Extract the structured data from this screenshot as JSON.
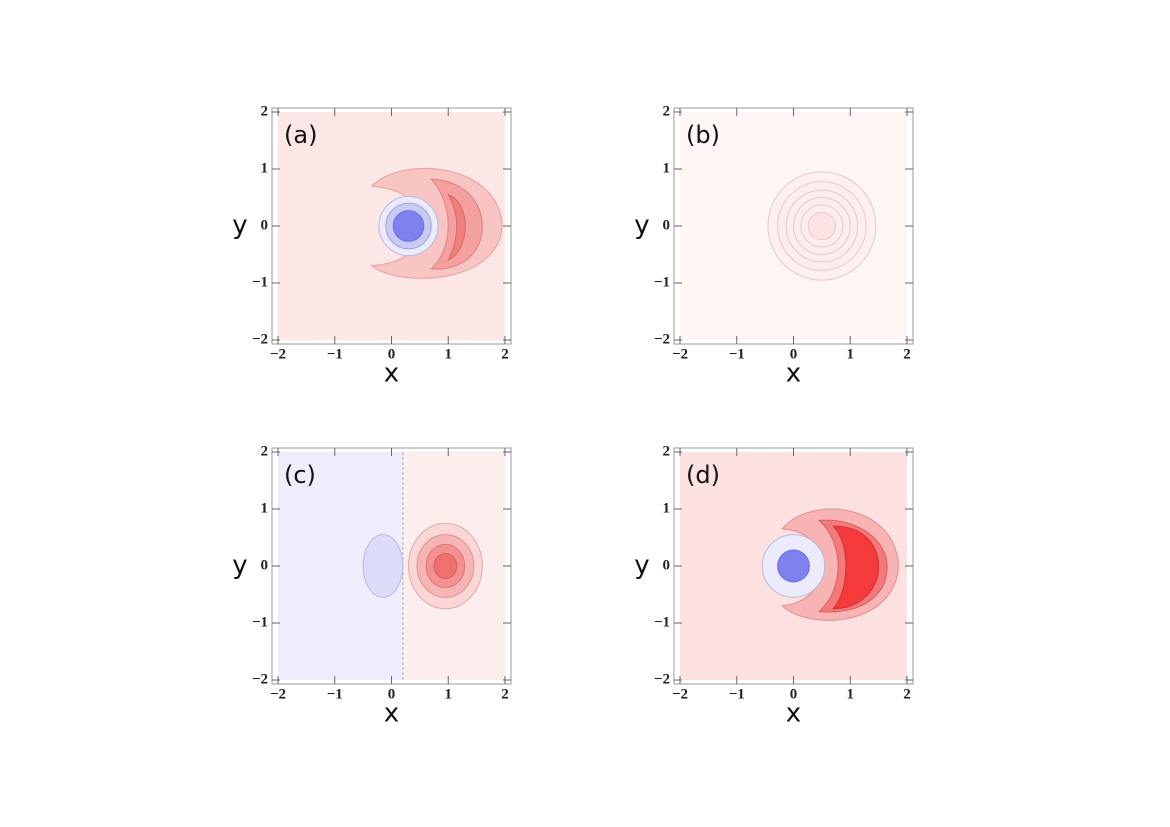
{
  "chart_data": [
    {
      "type": "contour",
      "panel_label": "(a)",
      "xlabel": "x",
      "ylabel": "y",
      "xlim": [
        -2,
        2
      ],
      "ylim": [
        -2,
        2
      ],
      "xticks": [
        {
          "value": -2,
          "label": "−2"
        },
        {
          "value": -1,
          "label": "−1"
        },
        0,
        1,
        2
      ],
      "yticks": [
        {
          "value": -2,
          "label": "−2"
        },
        {
          "value": -1,
          "label": "−1"
        },
        0,
        1,
        2
      ]
    },
    {
      "type": "contour",
      "panel_label": "(b)",
      "xlabel": "x",
      "ylabel": "y",
      "xlim": [
        -2,
        2
      ],
      "ylim": [
        -2,
        2
      ],
      "xticks": [
        {
          "value": -2,
          "label": "−2"
        },
        {
          "value": -1,
          "label": "−1"
        },
        0,
        1,
        2
      ],
      "yticks": [
        {
          "value": -2,
          "label": "−2"
        },
        {
          "value": -1,
          "label": "−1"
        },
        0,
        1,
        2
      ]
    },
    {
      "type": "contour",
      "panel_label": "(c)",
      "xlabel": "x",
      "ylabel": "y",
      "xlim": [
        -2,
        2
      ],
      "ylim": [
        -2,
        2
      ],
      "xticks": [
        {
          "value": -2,
          "label": "−2"
        },
        {
          "value": -1,
          "label": "−1"
        },
        0,
        1,
        2
      ],
      "yticks": [
        {
          "value": -2,
          "label": "−2"
        },
        {
          "value": -1,
          "label": "−1"
        },
        0,
        1,
        2
      ]
    },
    {
      "type": "contour",
      "panel_label": "(d)",
      "xlabel": "x",
      "ylabel": "y",
      "xlim": [
        -2,
        2
      ],
      "ylim": [
        -2,
        2
      ],
      "xticks": [
        {
          "value": -2,
          "label": "−2"
        },
        {
          "value": -1,
          "label": "−1"
        },
        0,
        1,
        2
      ],
      "yticks": [
        {
          "value": -2,
          "label": "−2"
        },
        {
          "value": -1,
          "label": "−1"
        },
        0,
        1,
        2
      ]
    }
  ]
}
